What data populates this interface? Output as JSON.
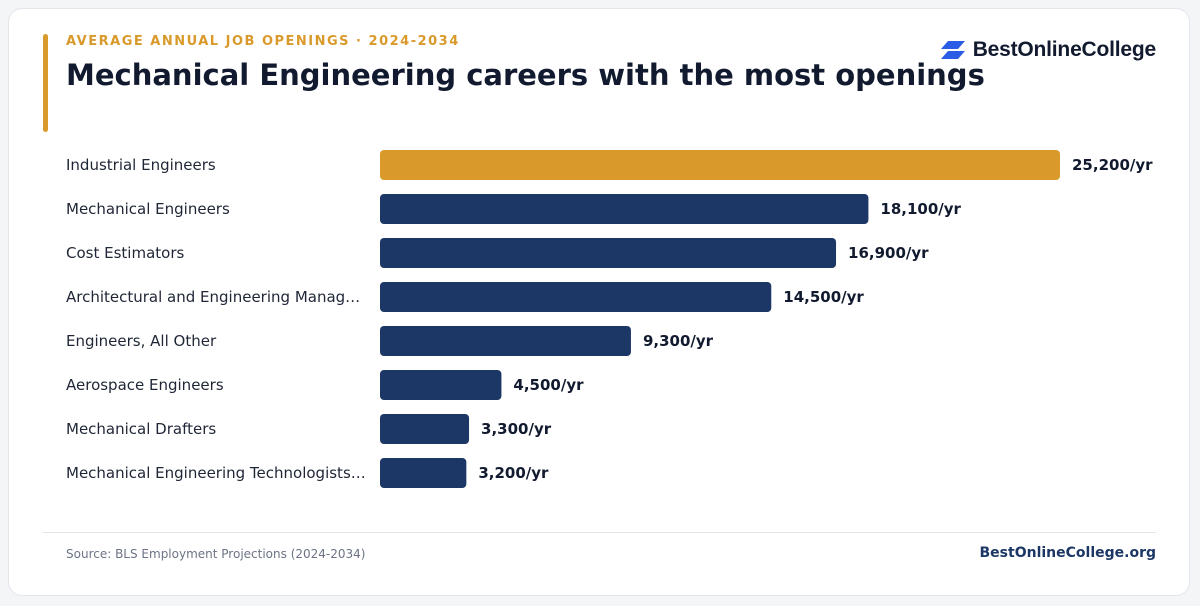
{
  "header": {
    "eyebrow": "AVERAGE ANNUAL JOB OPENINGS · 2024-2034",
    "title": "Mechanical Engineering careers with the most openings"
  },
  "brand": {
    "name": "BestOnlineCollege",
    "icon": "parallelogram-stripes-logo-icon",
    "icon_color": "#2b5ce6"
  },
  "footer": {
    "source": "Source: BLS Employment Projections (2024-2034)",
    "site": "BestOnlineCollege.org"
  },
  "colors": {
    "highlight": "#d99a2b",
    "bar": "#1c3766",
    "accent": "#d99a2b"
  },
  "chart_data": {
    "type": "bar",
    "orientation": "horizontal",
    "categories": [
      "Industrial Engineers",
      "Mechanical Engineers",
      "Cost Estimators",
      "Architectural and Engineering Manag…",
      "Engineers, All Other",
      "Aerospace Engineers",
      "Mechanical Drafters",
      "Mechanical Engineering Technologists…"
    ],
    "values": [
      25200,
      18100,
      16900,
      14500,
      9300,
      4500,
      3300,
      3200
    ],
    "value_labels": [
      "25,200/yr",
      "18,100/yr",
      "16,900/yr",
      "14,500/yr",
      "9,300/yr",
      "4,500/yr",
      "3,300/yr",
      "3,200/yr"
    ],
    "highlight_index": 0,
    "xlim": [
      0,
      25200
    ],
    "grid": false,
    "legend": "none"
  }
}
